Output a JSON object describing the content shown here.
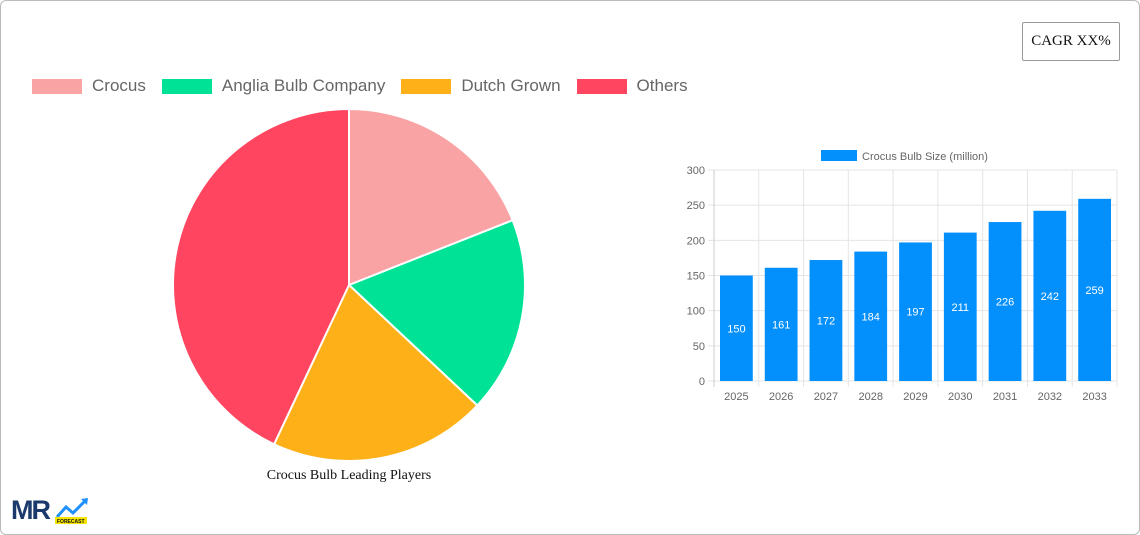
{
  "cagr_button": "CAGR XX%",
  "colors": {
    "bar": "#038ffc",
    "grid": "#e5e5e5",
    "axis_text": "#666"
  },
  "logo_text": "MR FORECAST",
  "chart_data": [
    {
      "type": "pie",
      "title": "Crocus Bulb Leading Players",
      "legend_position": "top",
      "labels": [
        "Crocus",
        "Anglia Bulb Company",
        "Dutch Grown",
        "Others"
      ],
      "values": [
        19,
        18,
        20,
        43
      ],
      "colors": [
        "#f9a3a4",
        "#00e396",
        "#feb019",
        "#ff4560"
      ]
    },
    {
      "type": "bar",
      "legend": "Crocus Bulb Size (million)",
      "legend_position": "top",
      "categories": [
        "2025",
        "2026",
        "2027",
        "2028",
        "2029",
        "2030",
        "2031",
        "2032",
        "2033"
      ],
      "values": [
        150,
        161,
        172,
        184,
        197,
        211,
        226,
        242,
        259
      ],
      "ylim": [
        0,
        300
      ],
      "yticks": [
        0,
        50,
        100,
        150,
        200,
        250,
        300
      ],
      "grid": true
    }
  ]
}
